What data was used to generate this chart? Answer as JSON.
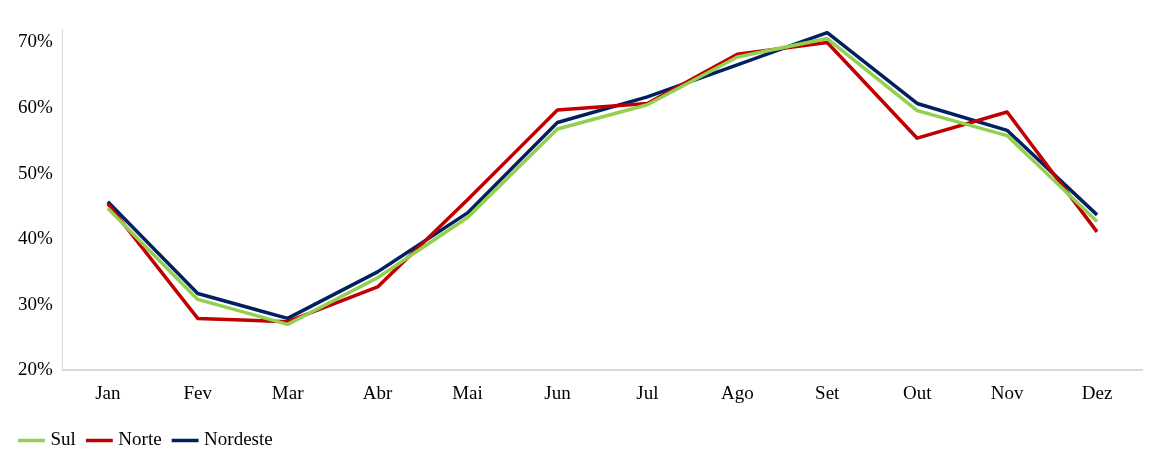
{
  "chart_data": {
    "type": "line",
    "categories": [
      "Jan",
      "Fev",
      "Mar",
      "Abr",
      "Mai",
      "Jun",
      "Jul",
      "Ago",
      "Set",
      "Out",
      "Nov",
      "Dez"
    ],
    "series": [
      {
        "name": "Sul",
        "color": "#92d050",
        "values": [
          44.7,
          30.8,
          27.0,
          34.1,
          43.3,
          56.8,
          60.5,
          67.8,
          70.6,
          59.6,
          55.8,
          42.7
        ]
      },
      {
        "name": "Norte",
        "color": "#c00000",
        "values": [
          45.4,
          27.9,
          27.4,
          32.7,
          46.0,
          59.7,
          60.7,
          68.2,
          70.0,
          55.4,
          59.4,
          41.1
        ]
      },
      {
        "name": "Nordeste",
        "color": "#002060",
        "values": [
          45.7,
          31.7,
          27.9,
          35.0,
          44.0,
          57.8,
          61.7,
          66.6,
          71.5,
          60.7,
          56.6,
          43.7
        ]
      }
    ],
    "ylim": [
      20,
      72
    ],
    "yticks": [
      {
        "value": 20,
        "label": "20%"
      },
      {
        "value": 30,
        "label": "30%"
      },
      {
        "value": 40,
        "label": "40%"
      },
      {
        "value": 50,
        "label": "50%"
      },
      {
        "value": 60,
        "label": "60%"
      },
      {
        "value": 70,
        "label": "70%"
      }
    ],
    "grid": false,
    "legend": "bottom left",
    "marker": "none",
    "line_style": "solid"
  }
}
